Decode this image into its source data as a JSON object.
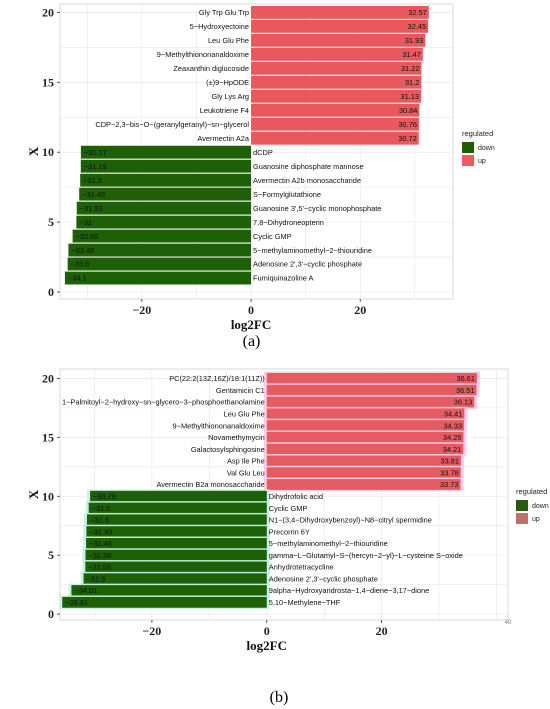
{
  "chart_data": [
    {
      "panel": "(a)",
      "type": "bar",
      "orientation": "horizontal",
      "xlabel": "log2FC",
      "ylabel": "X",
      "xlim": [
        -35,
        37
      ],
      "ylim": [
        -0.5,
        20.6
      ],
      "xticks": [
        -20,
        0,
        20
      ],
      "yticks": [
        0,
        5,
        10,
        15,
        20
      ],
      "grid": true,
      "legend": {
        "title": "regulated",
        "position": "right",
        "entries": [
          {
            "name": "down",
            "color": "#1e5f06"
          },
          {
            "name": "up",
            "color": "#f0595f"
          }
        ]
      },
      "series": [
        {
          "name": "up",
          "color": "#e9585c",
          "bars": [
            {
              "y": 20,
              "value": 32.57,
              "label": "Gly Trp Glu Trp",
              "value_text": "32.57"
            },
            {
              "y": 19,
              "value": 32.45,
              "label": "5−Hydroxyectoine",
              "value_text": "32.45"
            },
            {
              "y": 18,
              "value": 31.93,
              "label": "Leu Glu Phe",
              "value_text": "31.93"
            },
            {
              "y": 17,
              "value": 31.47,
              "label": "9−Methylthiononanaldoxime",
              "value_text": "31.47"
            },
            {
              "y": 16,
              "value": 31.22,
              "label": "Zeaxanthin diglucoside",
              "value_text": "31.22"
            },
            {
              "y": 15,
              "value": 31.2,
              "label": "(±)9−HpODE",
              "value_text": "31.2"
            },
            {
              "y": 14,
              "value": 31.13,
              "label": "Gly Lys Arg",
              "value_text": "31.13"
            },
            {
              "y": 13,
              "value": 30.84,
              "label": "Leukotriene F4",
              "value_text": "30.84"
            },
            {
              "y": 12,
              "value": 30.76,
              "label": "CDP−2,3−bis−O−(geranylgeranyl)−sn−glycerol",
              "value_text": "30.76"
            },
            {
              "y": 11,
              "value": 30.72,
              "label": "Avermectin A2a",
              "value_text": "30.72"
            }
          ]
        },
        {
          "name": "down",
          "color": "#1d6006",
          "bars": [
            {
              "y": 10,
              "value": -31.17,
              "label": "dCDP",
              "value_text": "−31.17"
            },
            {
              "y": 9,
              "value": -31.19,
              "label": "Guanosine diphosphate mannose",
              "value_text": "−31.19"
            },
            {
              "y": 8,
              "value": -31.3,
              "label": "Avermectin A2b monosaccharide",
              "value_text": "−31.3"
            },
            {
              "y": 7,
              "value": -31.48,
              "label": "S−Formylglutathione",
              "value_text": "−31.48"
            },
            {
              "y": 6,
              "value": -31.93,
              "label": "Guanosine 3',5'−cyclic monophosphate",
              "value_text": "−31.93"
            },
            {
              "y": 5,
              "value": -32.0,
              "label": "7,8−Dihydroneopterin",
              "value_text": "−32"
            },
            {
              "y": 4,
              "value": -32.69,
              "label": "Cyclic GMP",
              "value_text": "−32.69"
            },
            {
              "y": 3,
              "value": -33.46,
              "label": "5−methylaminomethyl−2−thiouridine",
              "value_text": "−33.46"
            },
            {
              "y": 2,
              "value": -33.6,
              "label": "Adenosine 2',3'−cyclic phosphate",
              "value_text": "−33.6"
            },
            {
              "y": 1,
              "value": -34.1,
              "label": "Fumiquinazoline A",
              "value_text": "−34.1"
            }
          ]
        }
      ]
    },
    {
      "panel": "(b)",
      "type": "bar",
      "orientation": "horizontal",
      "xlabel": "log2FC",
      "ylabel": "X",
      "xlim": [
        -36,
        42
      ],
      "ylim": [
        -0.5,
        20.8
      ],
      "xticks": [
        -20,
        0,
        20
      ],
      "yticks": [
        0,
        5,
        10,
        15,
        20
      ],
      "grid": true,
      "stray_text": "40",
      "legend": {
        "title": "regulated",
        "position": "right",
        "entries": [
          {
            "name": "down",
            "color": "#2a5a12"
          },
          {
            "name": "up",
            "color": "#c0706a"
          }
        ]
      },
      "series": [
        {
          "name": "up",
          "color": "#e45c62",
          "bars": [
            {
              "y": 20,
              "value": 36.61,
              "label": "PC(22:2(13Z,16Z)/18:1(11Z))",
              "value_text": "36.61"
            },
            {
              "y": 19,
              "value": 36.51,
              "label": "Gentamicin C1",
              "value_text": "36.51"
            },
            {
              "y": 18,
              "value": 36.13,
              "label": "1−Palmitoyl−2−hydroxy−sn−glycero−3−phosphoethanolamine",
              "value_text": "36.13"
            },
            {
              "y": 17,
              "value": 34.41,
              "label": "Leu Glu Phe",
              "value_text": "34.41"
            },
            {
              "y": 16,
              "value": 34.33,
              "label": "9−Methylthiononanaldoxime",
              "value_text": "34.33"
            },
            {
              "y": 15,
              "value": 34.25,
              "label": "Novamethymycin",
              "value_text": "34.25"
            },
            {
              "y": 14,
              "value": 34.21,
              "label": "Galactosylsphingosine",
              "value_text": "34.21"
            },
            {
              "y": 13,
              "value": 33.81,
              "label": "Asp Ile Phe",
              "value_text": "33.81"
            },
            {
              "y": 12,
              "value": 33.78,
              "label": "Val Glu Leu",
              "value_text": "33.78"
            },
            {
              "y": 11,
              "value": 33.73,
              "label": "Avermectin B2a monosaccharide",
              "value_text": "33.73"
            }
          ]
        },
        {
          "name": "down",
          "color": "#1d6006",
          "bars": [
            {
              "y": 10,
              "value": -30.76,
              "label": "Dihydrofolic acid",
              "value_text": "−30.76"
            },
            {
              "y": 9,
              "value": -31.0,
              "label": "Cyclic GMP",
              "value_text": "−31.0"
            },
            {
              "y": 8,
              "value": -31.3,
              "label": "N1−(3,4−Dihydroxybenzoyl)−N8−citryl spermidine",
              "value_text": "−31.3"
            },
            {
              "y": 7,
              "value": -31.4,
              "label": "Precorrin 6Y",
              "value_text": "−31.40"
            },
            {
              "y": 6,
              "value": -31.46,
              "label": "5−methylaminomethyl−2−thiouridine",
              "value_text": "−31.46"
            },
            {
              "y": 5,
              "value": -31.56,
              "label": "gamma−L−Glutamyl−S−(hercyn−2−yl)−L−cysteine S−oxide",
              "value_text": "−31.56"
            },
            {
              "y": 4,
              "value": -31.59,
              "label": "Anhydrotetracycline",
              "value_text": "−31.59"
            },
            {
              "y": 3,
              "value": -31.9,
              "label": "Adenosine 2',3'−cyclic phosphate",
              "value_text": "−31.9"
            },
            {
              "y": 2,
              "value": -34.01,
              "label": "9alpha−Hydroxyandrosta−1,4−diene−3,17−dione",
              "value_text": "−34.01"
            },
            {
              "y": 1,
              "value": -35.61,
              "label": "5,10−Methylene−THF",
              "value_text": "−35.61"
            }
          ]
        }
      ]
    }
  ]
}
